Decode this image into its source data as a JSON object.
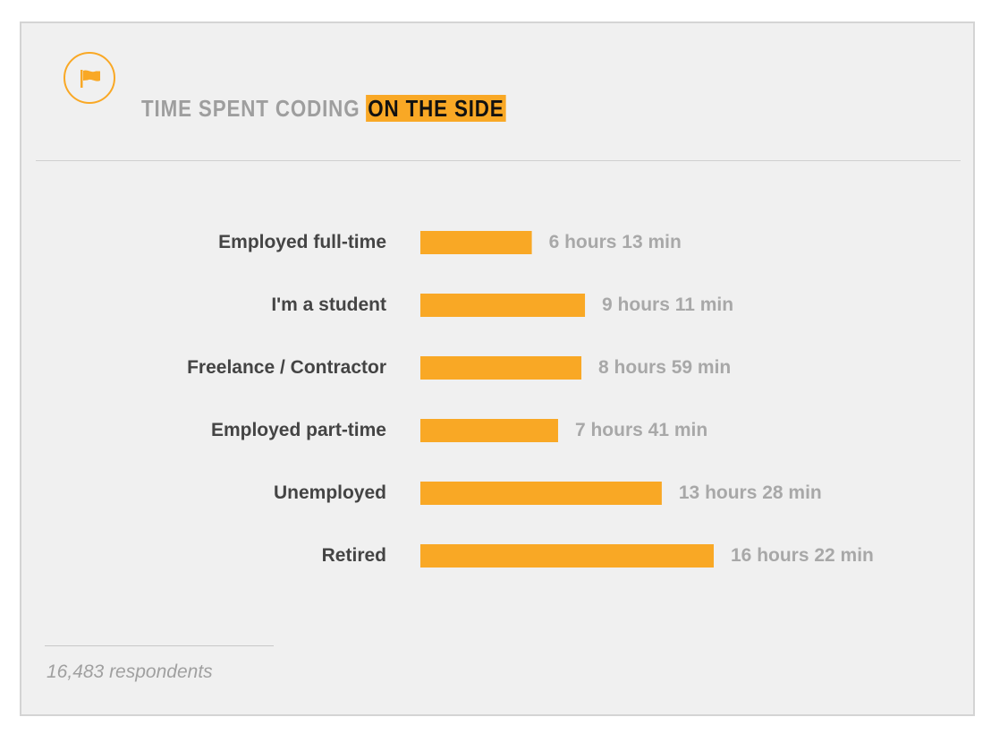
{
  "header": {
    "title_main": "TIME SPENT CODING ",
    "title_highlight": "ON THE SIDE",
    "icon": "flag-icon"
  },
  "colors": {
    "accent": "#f9a825",
    "label": "#444444",
    "value": "#a8a8a8",
    "background": "#f0f0f0"
  },
  "chart_data": {
    "type": "bar",
    "orientation": "horizontal",
    "categories": [
      "Employed full-time",
      "I'm a student",
      "Freelance / Contractor",
      "Employed part-time",
      "Unemployed",
      "Retired"
    ],
    "values": [
      373,
      551,
      539,
      461,
      808,
      982
    ],
    "value_unit": "minutes",
    "value_labels": [
      "6 hours 13 min",
      "9 hours 11 min",
      "8 hours 59 min",
      "7 hours 41 min",
      "13 hours 28 min",
      "16 hours 22 min"
    ],
    "title": "TIME SPENT CODING ON THE SIDE",
    "xlabel": "",
    "ylabel": "",
    "grid": false,
    "legend": "none"
  },
  "footer": {
    "note": "16,483 respondents"
  }
}
